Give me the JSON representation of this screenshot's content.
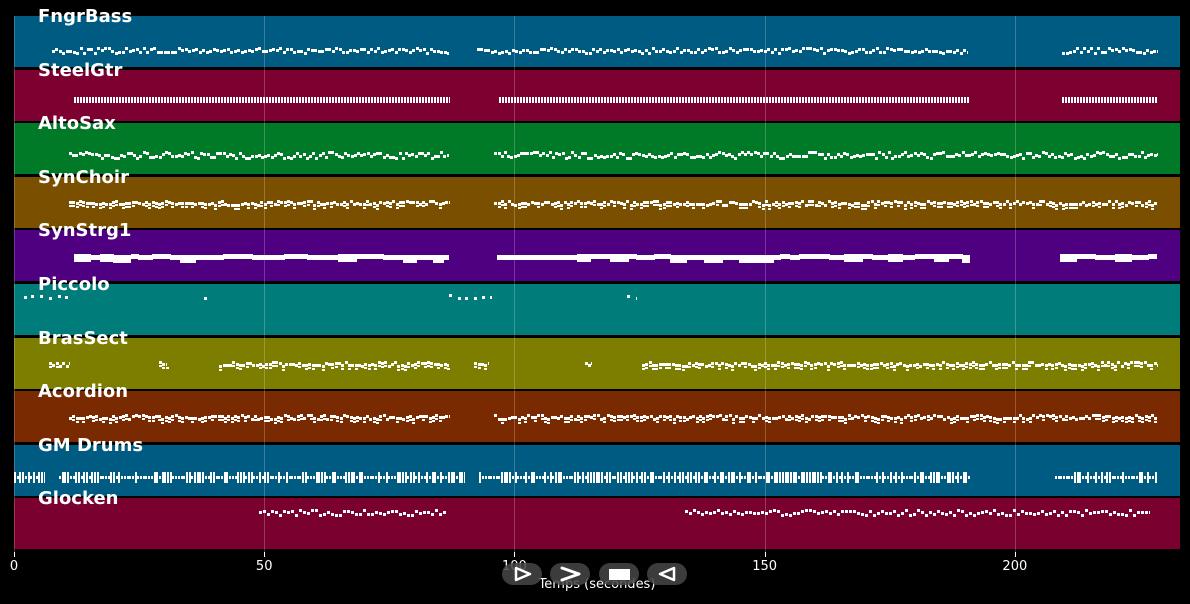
{
  "chart_data": {
    "type": "piano-roll",
    "xlabel": "Temps (secondes)",
    "xlim": [
      0,
      233
    ],
    "xticks": [
      0,
      50,
      100,
      150,
      200
    ],
    "grid": true,
    "tracks": [
      {
        "name": "FngrBass",
        "color": "#005b82",
        "segments": [
          [
            7.5,
            87
          ],
          [
            92.5,
            190.5
          ],
          [
            209.5,
            228.5
          ]
        ],
        "pattern": "bass"
      },
      {
        "name": "SteelGtr",
        "color": "#7c0030",
        "segments": [
          [
            12,
            87
          ],
          [
            97,
            191
          ],
          [
            209.5,
            228.5
          ]
        ],
        "pattern": "guitar"
      },
      {
        "name": "AltoSax",
        "color": "#007a26",
        "segments": [
          [
            11,
            87
          ],
          [
            96,
            228.5
          ]
        ],
        "pattern": "melody"
      },
      {
        "name": "SynChoir",
        "color": "#7a5000",
        "segments": [
          [
            11,
            87
          ],
          [
            96,
            228.5
          ]
        ],
        "pattern": "chord"
      },
      {
        "name": "SynStrg1",
        "color": "#4e0080",
        "segments": [
          [
            12,
            87
          ],
          [
            96.5,
            191
          ],
          [
            209,
            228.5
          ]
        ],
        "pattern": "pad"
      },
      {
        "name": "Piccolo",
        "color": "#007d7b",
        "segments": [
          [
            2,
            11
          ],
          [
            38,
            39.5
          ],
          [
            87,
            95.5
          ],
          [
            122.5,
            124.5
          ]
        ],
        "pattern": "sparse"
      },
      {
        "name": "BrasSect",
        "color": "#7d7d00",
        "segments": [
          [
            7,
            11
          ],
          [
            29,
            30.5
          ],
          [
            41,
            87
          ],
          [
            92,
            95
          ],
          [
            114,
            115.5
          ],
          [
            125.5,
            228.5
          ]
        ],
        "pattern": "chord"
      },
      {
        "name": "Acordion",
        "color": "#7a2a00",
        "segments": [
          [
            11,
            87
          ],
          [
            96,
            228.5
          ]
        ],
        "pattern": "chord"
      },
      {
        "name": "GM Drums",
        "color": "#005b82",
        "segments": [
          [
            0,
            6
          ],
          [
            9,
            90
          ],
          [
            93,
            191
          ],
          [
            208,
            228.5
          ]
        ],
        "pattern": "drums"
      },
      {
        "name": "Glocken",
        "color": "#7a0030",
        "segments": [
          [
            49,
            86.5
          ],
          [
            134,
            227
          ]
        ],
        "pattern": "glock"
      }
    ]
  },
  "controls": {
    "play_icon": "play-outline-icon",
    "forward_icon": "chevron-right-icon",
    "stop_icon": "stop-icon",
    "rewind_icon": "rewind-left-icon"
  }
}
